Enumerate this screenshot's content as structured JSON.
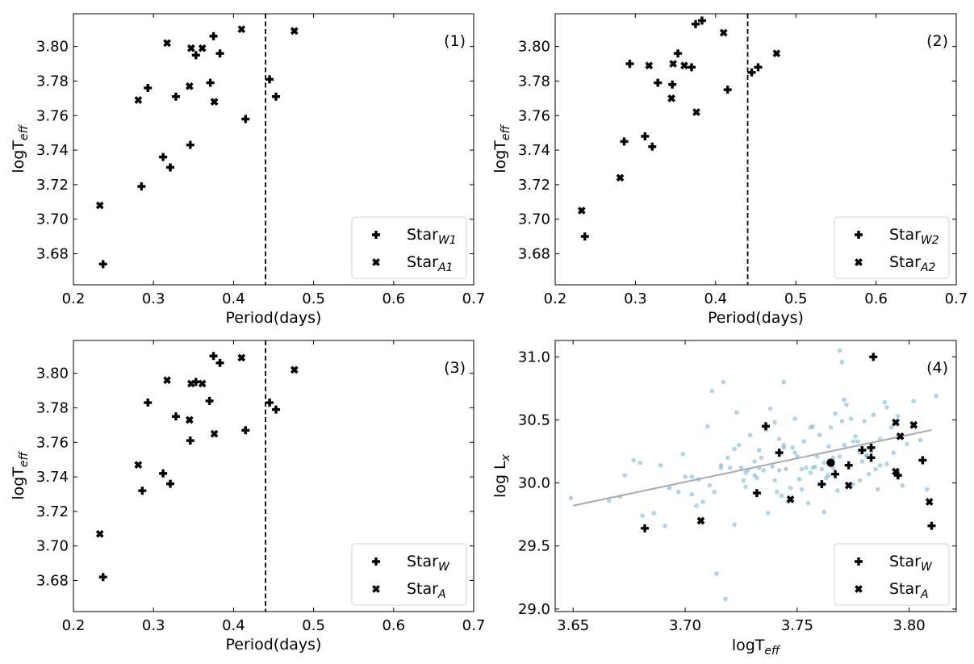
{
  "chart_data": [
    {
      "type": "scatter",
      "panel_label": "(1)",
      "xlabel": "Period(days)",
      "ylabel_base": "logT",
      "ylabel_sub": "eff",
      "xlim": [
        0.2,
        0.7
      ],
      "ylim": [
        3.662,
        3.819
      ],
      "xticks": [
        "0.2",
        "0.3",
        "0.4",
        "0.5",
        "0.6",
        "0.7"
      ],
      "yticks": [
        "3.68",
        "3.70",
        "3.72",
        "3.74",
        "3.76",
        "3.78",
        "3.80"
      ],
      "vline": 0.44,
      "legend_position": "lower right",
      "series": [
        {
          "legend_base": "Star",
          "legend_sub": "W1",
          "marker": "plus",
          "x": [
            0.237,
            0.285,
            0.293,
            0.312,
            0.321,
            0.328,
            0.346,
            0.353,
            0.371,
            0.375,
            0.383,
            0.415,
            0.445,
            0.453
          ],
          "y": [
            3.674,
            3.719,
            3.776,
            3.736,
            3.73,
            3.771,
            3.743,
            3.795,
            3.779,
            3.806,
            3.796,
            3.758,
            3.781,
            3.771
          ]
        },
        {
          "legend_base": "Star",
          "legend_sub": "A1",
          "marker": "x",
          "x": [
            0.233,
            0.281,
            0.317,
            0.345,
            0.347,
            0.361,
            0.376,
            0.41,
            0.476
          ],
          "y": [
            3.708,
            3.769,
            3.802,
            3.777,
            3.799,
            3.799,
            3.768,
            3.81,
            3.809
          ]
        }
      ]
    },
    {
      "type": "scatter",
      "panel_label": "(2)",
      "xlabel": "Period(days)",
      "ylabel_base": "logT",
      "ylabel_sub": "eff",
      "xlim": [
        0.2,
        0.7
      ],
      "ylim": [
        3.662,
        3.819
      ],
      "xticks": [
        "0.2",
        "0.3",
        "0.4",
        "0.5",
        "0.6",
        "0.7"
      ],
      "yticks": [
        "3.68",
        "3.70",
        "3.72",
        "3.74",
        "3.76",
        "3.78",
        "3.80"
      ],
      "vline": 0.44,
      "legend_position": "lower right",
      "series": [
        {
          "legend_base": "Star",
          "legend_sub": "W2",
          "marker": "plus",
          "x": [
            0.237,
            0.286,
            0.293,
            0.312,
            0.321,
            0.328,
            0.346,
            0.353,
            0.37,
            0.375,
            0.383,
            0.415,
            0.445,
            0.453
          ],
          "y": [
            3.69,
            3.745,
            3.79,
            3.748,
            3.742,
            3.779,
            3.778,
            3.796,
            3.788,
            3.813,
            3.815,
            3.775,
            3.785,
            3.788
          ]
        },
        {
          "legend_base": "Star",
          "legend_sub": "A2",
          "marker": "x",
          "x": [
            0.233,
            0.281,
            0.317,
            0.345,
            0.347,
            0.361,
            0.376,
            0.41,
            0.476
          ],
          "y": [
            3.705,
            3.724,
            3.789,
            3.77,
            3.79,
            3.789,
            3.762,
            3.808,
            3.796
          ]
        }
      ]
    },
    {
      "type": "scatter",
      "panel_label": "(3)",
      "xlabel": "Period(days)",
      "ylabel_base": "logT",
      "ylabel_sub": "eff",
      "xlim": [
        0.2,
        0.7
      ],
      "ylim": [
        3.662,
        3.819
      ],
      "xticks": [
        "0.2",
        "0.3",
        "0.4",
        "0.5",
        "0.6",
        "0.7"
      ],
      "yticks": [
        "3.68",
        "3.70",
        "3.72",
        "3.74",
        "3.76",
        "3.78",
        "3.80"
      ],
      "vline": 0.44,
      "legend_position": "lower right",
      "series": [
        {
          "legend_base": "Star",
          "legend_sub": "W",
          "marker": "plus",
          "x": [
            0.237,
            0.286,
            0.293,
            0.312,
            0.321,
            0.328,
            0.346,
            0.353,
            0.37,
            0.375,
            0.383,
            0.415,
            0.445,
            0.453
          ],
          "y": [
            3.682,
            3.732,
            3.783,
            3.742,
            3.736,
            3.775,
            3.761,
            3.795,
            3.784,
            3.81,
            3.806,
            3.767,
            3.783,
            3.779
          ]
        },
        {
          "legend_base": "Star",
          "legend_sub": "A",
          "marker": "x",
          "x": [
            0.233,
            0.281,
            0.317,
            0.345,
            0.347,
            0.361,
            0.376,
            0.41,
            0.476
          ],
          "y": [
            3.707,
            3.747,
            3.796,
            3.773,
            3.794,
            3.794,
            3.765,
            3.809,
            3.802
          ]
        }
      ]
    },
    {
      "type": "scatter",
      "panel_label": "(4)",
      "xlabel_base": "logT",
      "xlabel_sub": "eff",
      "ylabel_base": "log L",
      "ylabel_sub": "x",
      "xlim": [
        3.642,
        3.821
      ],
      "ylim": [
        28.98,
        31.13
      ],
      "xticks": [
        "3.65",
        "3.70",
        "3.75",
        "3.80"
      ],
      "yticks": [
        "29.0",
        "29.5",
        "30.0",
        "30.5",
        "31.0"
      ],
      "legend_position": "lower right",
      "fit_line": {
        "x": [
          3.65,
          3.81
        ],
        "y": [
          29.82,
          30.42
        ],
        "color": "#aaaaaa"
      },
      "background_color": "#6baed6",
      "background": {
        "x": [
          3.649,
          3.666,
          3.671,
          3.673,
          3.677,
          3.68,
          3.681,
          3.686,
          3.689,
          3.691,
          3.693,
          3.697,
          3.7,
          3.703,
          3.705,
          3.708,
          3.71,
          3.711,
          3.713,
          3.714,
          3.716,
          3.717,
          3.718,
          3.719,
          3.72,
          3.722,
          3.723,
          3.724,
          3.725,
          3.726,
          3.727,
          3.728,
          3.729,
          3.731,
          3.732,
          3.733,
          3.734,
          3.735,
          3.736,
          3.737,
          3.738,
          3.739,
          3.74,
          3.741,
          3.742,
          3.743,
          3.744,
          3.745,
          3.746,
          3.747,
          3.748,
          3.749,
          3.75,
          3.751,
          3.752,
          3.753,
          3.754,
          3.755,
          3.756,
          3.757,
          3.758,
          3.759,
          3.76,
          3.761,
          3.762,
          3.763,
          3.764,
          3.765,
          3.766,
          3.767,
          3.768,
          3.769,
          3.77,
          3.771,
          3.772,
          3.773,
          3.774,
          3.775,
          3.776,
          3.777,
          3.778,
          3.779,
          3.78,
          3.781,
          3.782,
          3.783,
          3.784,
          3.785,
          3.786,
          3.787,
          3.789,
          3.79,
          3.792,
          3.793,
          3.795,
          3.797,
          3.799,
          3.802,
          3.805,
          3.808,
          3.812,
          3.703,
          3.712,
          3.727,
          3.744,
          3.756,
          3.762,
          3.769,
          3.775,
          3.781,
          3.787,
          3.77,
          3.764,
          3.752,
          3.74,
          3.733,
          3.722,
          3.716,
          3.706,
          3.699,
          3.744,
          3.749,
          3.76,
          3.771,
          3.778,
          3.731,
          3.742,
          3.757,
          3.766,
          3.79
        ],
        "y": [
          29.88,
          29.86,
          29.89,
          30.06,
          30.18,
          30.16,
          29.74,
          29.76,
          30.14,
          29.66,
          29.96,
          29.93,
          30.05,
          29.91,
          29.82,
          29.85,
          30.45,
          29.98,
          29.93,
          29.28,
          30.12,
          30.8,
          29.08,
          30.2,
          30.12,
          29.67,
          30.56,
          30.3,
          30.12,
          30.02,
          29.97,
          30.1,
          30.38,
          30.06,
          30.04,
          30.26,
          30.2,
          30.1,
          30.42,
          29.76,
          30.59,
          30.13,
          30.02,
          29.93,
          30.1,
          29.9,
          30.8,
          30.11,
          29.85,
          29.96,
          30.28,
          30.24,
          30.21,
          30.03,
          29.95,
          30.33,
          30.12,
          29.84,
          30.08,
          30.45,
          30.13,
          30.21,
          30.38,
          30.11,
          29.77,
          30.04,
          30.29,
          30.44,
          30.12,
          30.55,
          29.94,
          30.21,
          30.49,
          30.3,
          30.62,
          30.14,
          30.51,
          29.99,
          30.37,
          30.33,
          30.02,
          30.17,
          30.49,
          30.21,
          30.07,
          30.25,
          30.54,
          30.11,
          29.95,
          30.35,
          30.64,
          30.15,
          30.44,
          30.24,
          30.53,
          29.98,
          30.31,
          30.65,
          30.34,
          29.95,
          30.69,
          30.05,
          30.73,
          30.08,
          30.28,
          30.44,
          30.16,
          31.05,
          30.33,
          30.22,
          30.14,
          30.96,
          30.06,
          30.11,
          30.48,
          30.12,
          30.27,
          30.14,
          30.03,
          30.23,
          30.3,
          30.51,
          29.99,
          30.66,
          30.24,
          30.17,
          30.35,
          30.12,
          30.2,
          30.6
        ]
      },
      "series": [
        {
          "legend_base": "Star",
          "legend_sub": "W",
          "marker": "plus",
          "x": [
            3.682,
            3.732,
            3.736,
            3.742,
            3.761,
            3.765,
            3.767,
            3.773,
            3.779,
            3.783,
            3.783,
            3.784,
            3.795,
            3.806,
            3.81
          ],
          "y": [
            29.64,
            29.92,
            30.45,
            30.24,
            29.99,
            30.16,
            30.07,
            30.14,
            30.26,
            30.2,
            30.28,
            31.0,
            30.06,
            30.18,
            29.66
          ]
        },
        {
          "legend_base": "Star",
          "legend_sub": "A",
          "marker": "x",
          "x": [
            3.707,
            3.747,
            3.765,
            3.773,
            3.794,
            3.794,
            3.796,
            3.802,
            3.809
          ],
          "y": [
            29.7,
            29.87,
            30.16,
            29.98,
            30.09,
            30.48,
            30.37,
            30.46,
            29.85
          ]
        }
      ]
    }
  ]
}
